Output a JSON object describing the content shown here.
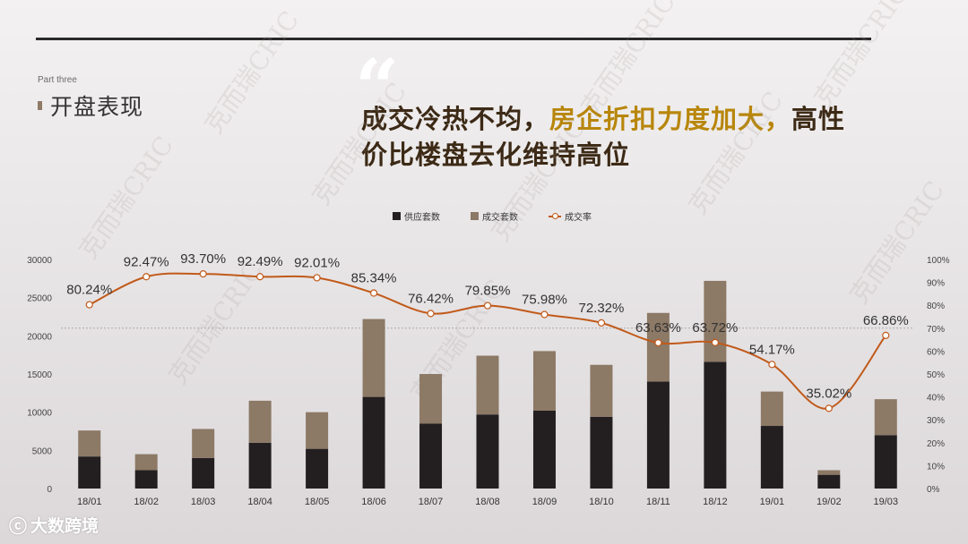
{
  "header": {
    "part_label": "Part three",
    "section_title": "开盘表现",
    "quote_mark": "“",
    "headline_line1": [
      {
        "text": "成交冷热不均，",
        "tone": "dark"
      },
      {
        "text": "房企折扣力度加大，",
        "tone": "gold"
      },
      {
        "text": "高性",
        "tone": "dark"
      }
    ],
    "headline_line2": [
      {
        "text": "价比楼盘去化维持高位",
        "tone": "dark"
      }
    ]
  },
  "watermark": "克而瑞CRIC",
  "brand": {
    "logo_icon": "speech-bubble-icon",
    "name": "大数跨境"
  },
  "colors": {
    "supply": "#231f20",
    "deal": "#8c7966",
    "rate": "#c15a1a",
    "headline_dark": "#3c2a16",
    "headline_gold": "#b8860b"
  },
  "chart_data": {
    "type": "bar",
    "stacked": true,
    "categories": [
      "18/01",
      "18/02",
      "18/03",
      "18/04",
      "18/05",
      "18/06",
      "18/07",
      "18/08",
      "18/09",
      "18/10",
      "18/11",
      "18/12",
      "19/01",
      "19/02",
      "19/03"
    ],
    "series": [
      {
        "name": "供应套数",
        "type": "bar",
        "axis": "left",
        "values": [
          4200,
          2400,
          4000,
          6000,
          5200,
          12000,
          8500,
          9700,
          10200,
          9400,
          14000,
          16600,
          8200,
          1800,
          7000
        ]
      },
      {
        "name": "成交套数",
        "type": "bar",
        "axis": "left",
        "values": [
          3400,
          2100,
          3800,
          5500,
          4800,
          10200,
          6500,
          7700,
          7800,
          6800,
          9000,
          10600,
          4500,
          600,
          4700
        ]
      },
      {
        "name": "成交率",
        "type": "line",
        "axis": "right",
        "values": [
          80.24,
          92.47,
          93.7,
          92.49,
          92.01,
          85.34,
          76.42,
          79.85,
          75.98,
          72.32,
          63.63,
          63.72,
          54.17,
          35.02,
          66.86
        ],
        "labels": [
          "80.24%",
          "92.47%",
          "93.70%",
          "92.49%",
          "92.01%",
          "85.34%",
          "76.42%",
          "79.85%",
          "75.98%",
          "72.32%",
          "63.63%",
          "63.72%",
          "54.17%",
          "35.02%",
          "66.86%"
        ]
      }
    ],
    "y_left": {
      "min": 0,
      "max": 30000,
      "ticks": [
        "0",
        "5000",
        "10000",
        "15000",
        "20000",
        "25000",
        "30000"
      ]
    },
    "y_right": {
      "min": 0,
      "max": 100,
      "ticks": [
        "0%",
        "10%",
        "20%",
        "30%",
        "40%",
        "50%",
        "60%",
        "70%",
        "80%",
        "90%",
        "100%"
      ]
    },
    "reference_line": {
      "axis": "right",
      "value": 70
    },
    "legend_position": "top-center",
    "grid": false
  }
}
